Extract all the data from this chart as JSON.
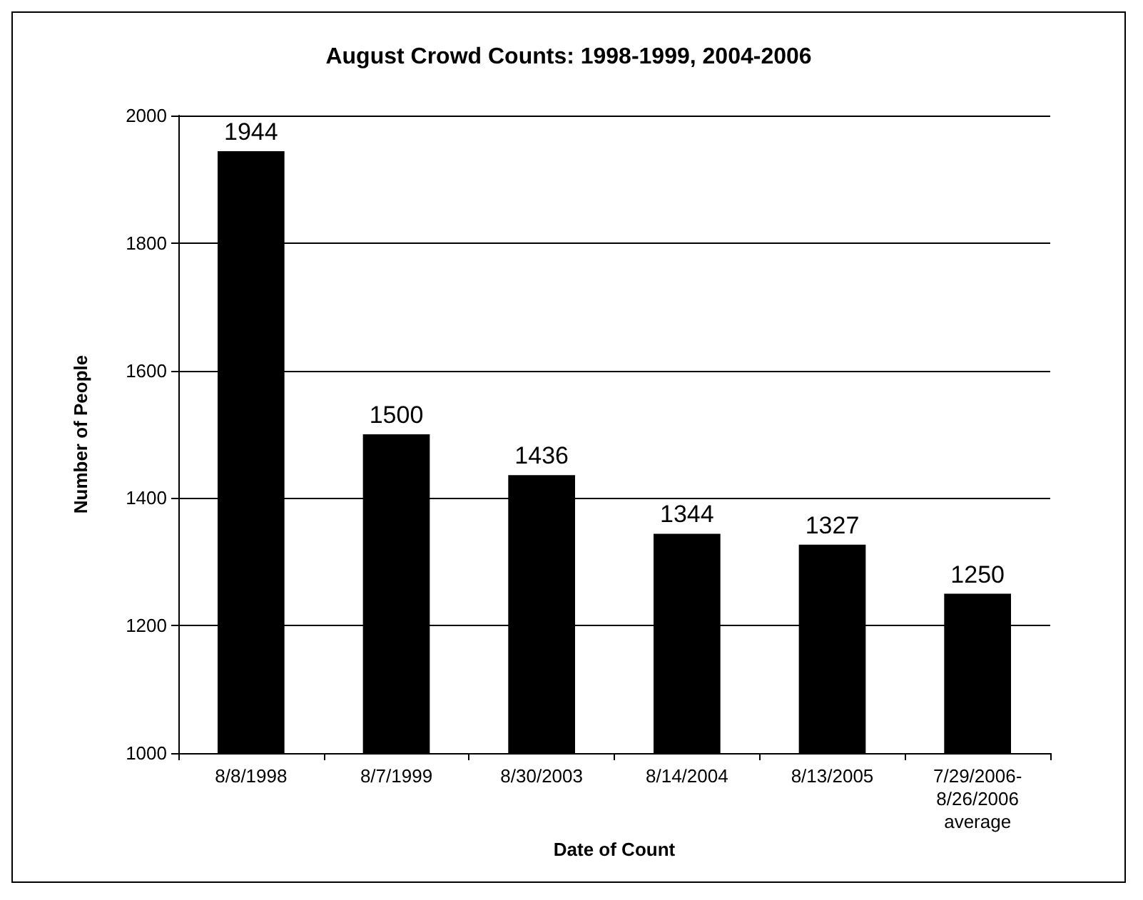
{
  "chart_data": {
    "type": "bar",
    "title": "August Crowd Counts: 1998-1999, 2004-2006",
    "xlabel": "Date of Count",
    "ylabel": "Number of People",
    "categories": [
      "8/8/1998",
      "8/7/1999",
      "8/30/2003",
      "8/14/2004",
      "8/13/2005",
      "7/29/2006-\n8/26/2006\naverage"
    ],
    "values": [
      1944,
      1500,
      1436,
      1344,
      1327,
      1250
    ],
    "color": "#000000",
    "ylim": [
      1000,
      2000
    ],
    "yticks": [
      1000,
      1200,
      1400,
      1600,
      1800,
      2000
    ],
    "grid": "y",
    "data_labels": true
  }
}
